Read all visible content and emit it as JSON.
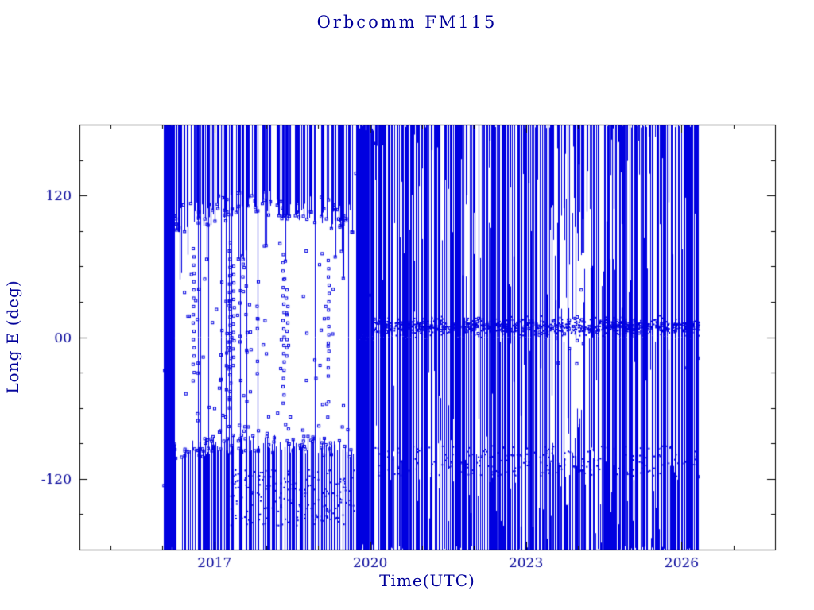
{
  "chart_data": {
    "type": "scatter",
    "title": "Orbcomm FM115",
    "xlabel": "Time(UTC)",
    "ylabel": "Long E (deg)",
    "xlim": [
      2014.4,
      2027.8
    ],
    "ylim": [
      -180,
      180
    ],
    "xticks": [
      {
        "value": 2017,
        "label": "2017"
      },
      {
        "value": 2020,
        "label": "2020"
      },
      {
        "value": 2023,
        "label": "2023"
      },
      {
        "value": 2026,
        "label": "2026"
      }
    ],
    "yticks": [
      {
        "value": 120,
        "label": "120"
      },
      {
        "value": 0,
        "label": "00"
      },
      {
        "value": -120,
        "label": "-120"
      }
    ],
    "xtick_minor_step": 1,
    "ytick_minor_step": 30,
    "grid": false,
    "legend": null,
    "marker": "open-square",
    "colors": {
      "data": "#0000e0",
      "frame": "#000000",
      "text": "#000099",
      "background": "#ffffff"
    },
    "seed": 1337,
    "data_extent": {
      "t_start": 2016.0,
      "t_end": 2026.35
    },
    "render": {
      "full_columns": [
        {
          "t0": 2016.02,
          "t1": 2016.22,
          "count": 50
        },
        {
          "t0": 2019.72,
          "t1": 2020.08,
          "count": 55
        },
        {
          "t0": 2026.1,
          "t1": 2026.35,
          "count": 28
        }
      ],
      "arch_gap": {
        "t0": 2016.22,
        "t1": 2019.72,
        "top_boundary_base": 86,
        "top_boundary_amp": 14,
        "top_jitter": 25,
        "top_count": 175,
        "bottom_boundary_base": -104,
        "bottom_boundary_amp": 6,
        "bottom_jitter": 16,
        "bottom_count": 150,
        "full_line_count": 12,
        "mid_scatter_count": 80,
        "bottom_rows": {
          "t0": 2017.2,
          "t1": 2019.7,
          "v0": -112,
          "v1": -160,
          "count": 240
        },
        "trails": [
          [
            2016.6,
            75,
            -40
          ],
          [
            2017.3,
            80,
            -65
          ],
          [
            2017.37,
            60,
            -30
          ],
          [
            2018.33,
            70,
            -60
          ],
          [
            2018.4,
            40,
            -20
          ],
          [
            2019.2,
            65,
            -35
          ]
        ]
      },
      "mixed": {
        "t0": 2020.08,
        "t1": 2026.32,
        "count": 400,
        "sparse_window": [
          2023.45,
          2024.25
        ],
        "top_extra": 130,
        "bottom_extra": 160,
        "hband": {
          "v_center": 9,
          "spread": 7,
          "count": 950
        },
        "low_band": {
          "v0": -118,
          "v1": -92,
          "count": 260
        }
      }
    }
  }
}
